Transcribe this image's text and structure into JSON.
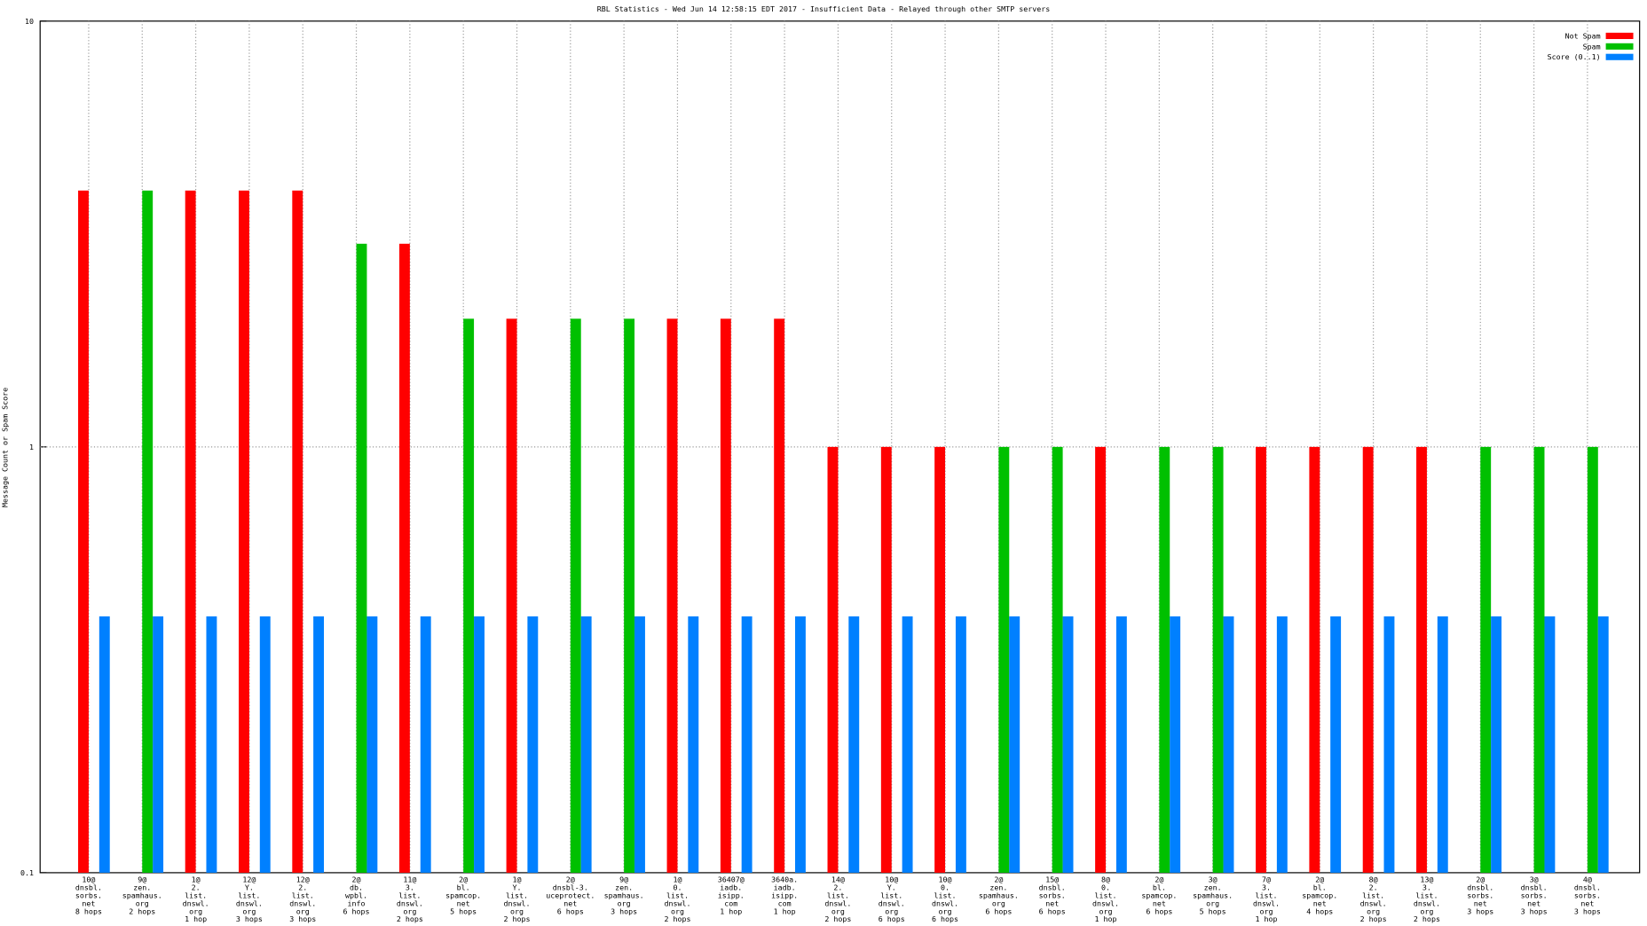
{
  "chart_data": {
    "type": "bar",
    "log_scale": true,
    "title": "RBL Statistics - Wed Jun 14 12:58:15 EDT 2017 - Insufficient Data - Relayed through other SMTP servers",
    "y_label": "Message Count or Spam Score",
    "categories": [
      "10@\ndnsbl.\nsorbs.\nnet\n8 hops",
      "9@\nzen.\nspamhaus.\norg\n2 hops",
      "1@\n2.\nlist.\ndnswl.\norg\n1 hop",
      "12@\nY.\nlist.\ndnswl.\norg\n3 hops",
      "12@\n2.\nlist.\ndnswl.\norg\n3 hops",
      "2@\ndb.\nwpbl.\ninfo\n6 hops",
      "11@\n3.\nlist.\ndnswl.\norg\n2 hops",
      "2@\nbl.\nspamcop.\nnet\n5 hops",
      "1@\nY.\nlist.\ndnswl.\norg\n2 hops",
      "2@\ndnsbl-3.\nuceprotect.\nnet\n6 hops",
      "9@\nzen.\nspamhaus.\norg\n3 hops",
      "1@\n0.\nlist.\ndnswl.\norg\n2 hops",
      "36407@\niadb.\nisipp.\ncom\n1 hop",
      "3640a.\niadb.\nisipp.\ncom\n1 hop",
      "14@\n2.\nlist.\ndnswl.\norg\n2 hops",
      "10@\nY.\nlist.\ndnswl.\norg\n6 hops",
      "10@\n0.\nlist.\ndnswl.\norg\n6 hops",
      "2@\nzen.\nspamhaus.\norg\n6 hops",
      "15@\ndnsbl.\nsorbs.\nnet\n6 hops",
      "8@\n0.\nlist.\ndnswl.\norg\n1 hop",
      "2@\nbl.\nspamcop.\nnet\n6 hops",
      "3@\nzen.\nspamhaus.\norg\n5 hops",
      "7@\n3.\nlist.\ndnswl.\norg\n1 hop",
      "2@\nbl.\nspamcop.\nnet\n4 hops",
      "8@\n2.\nlist.\ndnswl.\norg\n2 hops",
      "13@\n3.\nlist.\ndnswl.\norg\n2 hops",
      "2@\ndnsbl.\nsorbs.\nnet\n3 hops",
      "3@\ndnsbl.\nsorbs.\nnet\n3 hops",
      "4@\ndnsbl.\nsorbs.\nnet\n3 hops"
    ],
    "series": [
      {
        "name": "Not Spam",
        "color": "#ff0000",
        "values": [
          4,
          null,
          4,
          4,
          4,
          null,
          3,
          null,
          2,
          null,
          null,
          2,
          2,
          2,
          1,
          1,
          1,
          null,
          null,
          1,
          null,
          null,
          1,
          1,
          1,
          1,
          null,
          null,
          null
        ]
      },
      {
        "name": "Spam",
        "color": "#00c000",
        "values": [
          null,
          4,
          null,
          null,
          null,
          3,
          null,
          2,
          null,
          2,
          2,
          null,
          null,
          null,
          null,
          null,
          null,
          1,
          1,
          null,
          1,
          1,
          null,
          null,
          null,
          null,
          1,
          1,
          1
        ]
      },
      {
        "name": "Score (0..1)",
        "color": "#0080ff",
        "values": [
          0.4,
          0.4,
          0.4,
          0.4,
          0.4,
          0.4,
          0.4,
          0.4,
          0.4,
          0.4,
          0.4,
          0.4,
          0.4,
          0.4,
          0.4,
          0.4,
          0.4,
          0.4,
          0.4,
          0.4,
          0.4,
          0.4,
          0.4,
          0.4,
          0.4,
          0.4,
          0.4,
          0.4,
          0.4
        ]
      }
    ],
    "ylim": [
      0.1,
      10
    ],
    "yticks": [
      0.1,
      1,
      10
    ],
    "grid": true,
    "legend": "top-right"
  }
}
